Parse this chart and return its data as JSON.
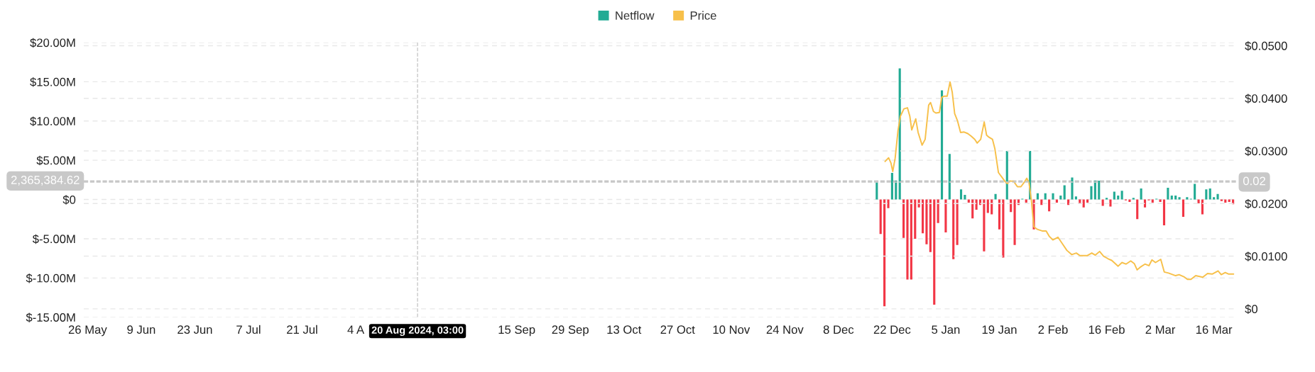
{
  "chart_data": {
    "type": "bar",
    "legend": "top",
    "grid": "y",
    "xlim": [
      "2024-05-25",
      "2025-03-22"
    ],
    "xticks": [
      {
        "value": "2024-05-26",
        "label": "26 May"
      },
      {
        "value": "2024-06-09",
        "label": "9 Jun"
      },
      {
        "value": "2024-06-23",
        "label": "23 Jun"
      },
      {
        "value": "2024-07-07",
        "label": "7 Jul"
      },
      {
        "value": "2024-07-21",
        "label": "21 Jul"
      },
      {
        "value": "2024-08-04",
        "label": "4 A"
      },
      {
        "value": "2024-09-15",
        "label": "15 Sep"
      },
      {
        "value": "2024-09-29",
        "label": "29 Sep"
      },
      {
        "value": "2024-10-13",
        "label": "13 Oct"
      },
      {
        "value": "2024-10-27",
        "label": "27 Oct"
      },
      {
        "value": "2024-11-10",
        "label": "10 Nov"
      },
      {
        "value": "2024-11-24",
        "label": "24 Nov"
      },
      {
        "value": "2024-12-08",
        "label": "8 Dec"
      },
      {
        "value": "2024-12-22",
        "label": "22 Dec"
      },
      {
        "value": "2025-01-05",
        "label": "5 Jan"
      },
      {
        "value": "2025-01-19",
        "label": "19 Jan"
      },
      {
        "value": "2025-02-02",
        "label": "2 Feb"
      },
      {
        "value": "2025-02-16",
        "label": "16 Feb"
      },
      {
        "value": "2025-03-02",
        "label": "2 Mar"
      },
      {
        "value": "2025-03-16",
        "label": "16 Mar"
      }
    ],
    "ylim": [
      -15000000,
      20000000
    ],
    "yticks": [
      {
        "value": -15000000,
        "label": "$-15.00M"
      },
      {
        "value": -10000000,
        "label": "$-10.00M"
      },
      {
        "value": -5000000,
        "label": "$-5.00M"
      },
      {
        "value": 0,
        "label": "$0"
      },
      {
        "value": 5000000,
        "label": "$5.00M"
      },
      {
        "value": 10000000,
        "label": "$10.00M"
      },
      {
        "value": 15000000,
        "label": "$15.00M"
      },
      {
        "value": 20000000,
        "label": "$20.00M"
      }
    ],
    "y2lim": [
      -0.0016,
      0.0506
    ],
    "y2ticks": [
      {
        "value": 0,
        "label": "$0"
      },
      {
        "value": 0.01,
        "label": "$0.0100"
      },
      {
        "value": 0.02,
        "label": "$0.0200"
      },
      {
        "value": 0.03,
        "label": "$0.0300"
      },
      {
        "value": 0.04,
        "label": "$0.0400"
      },
      {
        "value": 0.05,
        "label": "$0.0500"
      }
    ],
    "series": [
      {
        "name": "Netflow",
        "color": "#22ab94",
        "x": [
          "2024-12-18",
          "2024-12-19",
          "2024-12-20",
          "2024-12-21",
          "2024-12-22",
          "2024-12-23",
          "2024-12-24",
          "2024-12-25",
          "2024-12-26",
          "2024-12-27",
          "2024-12-28",
          "2024-12-29",
          "2024-12-30",
          "2024-12-31",
          "2025-01-01",
          "2025-01-02",
          "2025-01-03",
          "2025-01-04",
          "2025-01-05",
          "2025-01-06",
          "2025-01-07",
          "2025-01-08",
          "2025-01-09",
          "2025-01-10",
          "2025-01-11",
          "2025-01-12",
          "2025-01-13",
          "2025-01-14",
          "2025-01-15",
          "2025-01-16",
          "2025-01-17",
          "2025-01-18",
          "2025-01-19",
          "2025-01-20",
          "2025-01-21",
          "2025-01-22",
          "2025-01-23",
          "2025-01-24",
          "2025-01-25",
          "2025-01-26",
          "2025-01-27",
          "2025-01-28",
          "2025-01-29",
          "2025-01-30",
          "2025-01-31",
          "2025-02-01",
          "2025-02-02",
          "2025-02-03",
          "2025-02-04",
          "2025-02-05",
          "2025-02-06",
          "2025-02-07",
          "2025-02-08",
          "2025-02-09",
          "2025-02-10",
          "2025-02-11",
          "2025-02-12",
          "2025-02-13",
          "2025-02-14",
          "2025-02-15",
          "2025-02-16",
          "2025-02-17",
          "2025-02-18",
          "2025-02-19",
          "2025-02-20",
          "2025-02-21",
          "2025-02-22",
          "2025-02-23",
          "2025-02-24",
          "2025-02-25",
          "2025-02-26",
          "2025-02-27",
          "2025-02-28",
          "2025-03-01",
          "2025-03-02",
          "2025-03-03",
          "2025-03-04",
          "2025-03-05",
          "2025-03-06",
          "2025-03-07",
          "2025-03-08",
          "2025-03-09",
          "2025-03-10",
          "2025-03-11",
          "2025-03-12",
          "2025-03-13",
          "2025-03-14",
          "2025-03-15",
          "2025-03-16",
          "2025-03-17",
          "2025-03-18",
          "2025-03-19",
          "2025-03-20",
          "2025-03-21"
        ],
        "values": [
          2200000,
          -4400000,
          -13600000,
          -1100000,
          3400000,
          2400000,
          16700000,
          -4900000,
          -10200000,
          -10200000,
          -5000000,
          -1000000,
          -4300000,
          -5700000,
          -6700000,
          -13400000,
          -3000000,
          13900000,
          -4200000,
          5800000,
          -7600000,
          -5800000,
          1300000,
          600000,
          -400000,
          -2400000,
          -1300000,
          -700000,
          -6600000,
          -1700000,
          -1900000,
          700000,
          -3800000,
          -7400000,
          6200000,
          -1600000,
          -5800000,
          -700000,
          100000,
          -400000,
          6200000,
          -3800000,
          800000,
          -700000,
          800000,
          -1500000,
          800000,
          -400000,
          500000,
          1800000,
          -700000,
          2800000,
          400000,
          -500000,
          -1000000,
          -400000,
          1700000,
          2400000,
          2400000,
          -800000,
          200000,
          -900000,
          1000000,
          500000,
          1100000,
          -100000,
          -300000,
          200000,
          -2500000,
          1400000,
          -1000000,
          -100000,
          -400000,
          100000,
          -300000,
          -3300000,
          1500000,
          500000,
          500000,
          300000,
          -2200000,
          300000,
          100000,
          2000000,
          -500000,
          -1900000,
          1300000,
          1400000,
          300000,
          700000,
          -200000,
          -400000,
          -300000,
          -600000
        ],
        "colors": [
          "#22ab94",
          "#f23645",
          "#f23645",
          "#f23645",
          "#22ab94",
          "#22ab94",
          "#22ab94",
          "#f23645",
          "#f23645",
          "#f23645",
          "#f23645",
          "#f23645",
          "#f23645",
          "#f23645",
          "#f23645",
          "#f23645",
          "#f23645",
          "#22ab94",
          "#f23645",
          "#22ab94",
          "#f23645",
          "#f23645",
          "#22ab94",
          "#22ab94",
          "#f23645",
          "#f23645",
          "#f23645",
          "#f23645",
          "#f23645",
          "#f23645",
          "#f23645",
          "#22ab94",
          "#f23645",
          "#f23645",
          "#22ab94",
          "#f23645",
          "#f23645",
          "#f23645",
          "#22ab94",
          "#f23645",
          "#22ab94",
          "#f23645",
          "#22ab94",
          "#f23645",
          "#22ab94",
          "#f23645",
          "#22ab94",
          "#f23645",
          "#22ab94",
          "#22ab94",
          "#f23645",
          "#22ab94",
          "#22ab94",
          "#f23645",
          "#f23645",
          "#f23645",
          "#22ab94",
          "#22ab94",
          "#22ab94",
          "#f23645",
          "#22ab94",
          "#f23645",
          "#22ab94",
          "#22ab94",
          "#22ab94",
          "#f23645",
          "#f23645",
          "#22ab94",
          "#f23645",
          "#22ab94",
          "#f23645",
          "#f23645",
          "#f23645",
          "#22ab94",
          "#f23645",
          "#f23645",
          "#22ab94",
          "#22ab94",
          "#22ab94",
          "#22ab94",
          "#f23645",
          "#22ab94",
          "#22ab94",
          "#22ab94",
          "#f23645",
          "#f23645",
          "#22ab94",
          "#22ab94",
          "#22ab94",
          "#22ab94",
          "#f23645",
          "#f23645",
          "#f23645",
          "#f23645"
        ]
      },
      {
        "name": "Price",
        "type": "line",
        "axis": "y2",
        "color": "#f7c04a",
        "x": [
          "2024-12-20T04:00",
          "2024-12-21T02:00",
          "2024-12-21T17:00",
          "2024-12-22T04:00",
          "2024-12-22T19:00",
          "2024-12-23T13:00",
          "2024-12-24T04:00",
          "2024-12-25T02:00",
          "2024-12-26T00:00",
          "2024-12-26T15:00",
          "2024-12-27T03:00",
          "2024-12-28T04:00",
          "2024-12-28T19:00",
          "2024-12-29T20:00",
          "2024-12-30T15:00",
          "2024-12-31T13:00",
          "2025-01-01T01:00",
          "2025-01-01T19:00",
          "2025-01-02T10:00",
          "2025-01-03T08:00",
          "2025-01-03T23:00",
          "2025-01-04T14:00",
          "2025-01-05T09:00",
          "2025-01-06T03:00",
          "2025-01-06T17:00",
          "2025-01-07T08:00",
          "2025-01-08T02:00",
          "2025-01-08T21:00",
          "2025-01-09T19:00",
          "2025-01-10T18:00",
          "2025-01-11T16:00",
          "2025-01-12T14:00",
          "2025-01-13T05:00",
          "2025-01-14T03:00",
          "2025-01-15T01:00",
          "2025-01-15T16:00",
          "2025-01-16T07:00",
          "2025-01-17T05:00",
          "2025-01-17T20:00",
          "2025-01-18T18:00",
          "2025-01-19T16:00",
          "2025-01-20T14:00",
          "2025-01-21T02:00",
          "2025-01-21T20:00",
          "2025-01-22T18:00",
          "2025-01-23T17:00",
          "2025-01-24T15:00",
          "2025-01-25T13:00",
          "2025-01-26T04:00",
          "2025-01-26T18:00",
          "2025-01-27T09:00",
          "2025-01-28T00:00",
          "2025-01-28T22:00",
          "2025-01-30T04:00",
          "2025-01-31T05:00",
          "2025-02-01T00:00",
          "2025-02-01T23:00",
          "2025-02-03T07:00",
          "2025-02-04T10:00",
          "2025-02-05T15:00",
          "2025-02-06T21:00",
          "2025-02-08T02:00",
          "2025-02-09T01:00",
          "2025-02-10T21:00",
          "2025-02-12T03:00",
          "2025-02-13T01:00",
          "2025-02-14T04:00",
          "2025-02-15T05:00",
          "2025-02-16T10:00",
          "2025-02-17T08:00",
          "2025-02-19T00:00",
          "2025-02-20T00:00",
          "2025-02-21T01:00",
          "2025-02-22T07:00",
          "2025-02-23T05:00",
          "2025-02-23T23:00",
          "2025-02-24T18:00",
          "2025-02-26T00:00",
          "2025-02-27T01:00",
          "2025-02-27T20:00",
          "2025-02-28T18:00",
          "2025-03-02T03:00",
          "2025-03-03T01:00",
          "2025-03-04T04:00",
          "2025-03-06T00:00",
          "2025-03-06T22:00",
          "2025-03-08T04:00",
          "2025-03-09T02:00",
          "2025-03-10T00:00",
          "2025-03-11T06:00",
          "2025-03-13T02:00",
          "2025-03-14T08:00",
          "2025-03-15T13:00",
          "2025-03-17T02:00",
          "2025-03-17T22:00",
          "2025-03-18T23:00",
          "2025-03-19T21:00",
          "2025-03-21T03:00"
        ],
        "values": [
          0.028,
          0.0287,
          0.0277,
          0.0261,
          0.0286,
          0.0339,
          0.0366,
          0.038,
          0.0382,
          0.0366,
          0.034,
          0.0361,
          0.0335,
          0.0311,
          0.0322,
          0.0387,
          0.0392,
          0.0375,
          0.0372,
          0.0373,
          0.0402,
          0.0404,
          0.0404,
          0.0431,
          0.0411,
          0.0371,
          0.0357,
          0.0335,
          0.0336,
          0.0333,
          0.0328,
          0.0322,
          0.0315,
          0.0322,
          0.0355,
          0.033,
          0.0326,
          0.0322,
          0.0304,
          0.0259,
          0.025,
          0.0241,
          0.0238,
          0.0243,
          0.0242,
          0.0232,
          0.0232,
          0.0241,
          0.0248,
          0.0239,
          0.0205,
          0.0156,
          0.0151,
          0.0148,
          0.0148,
          0.0138,
          0.0131,
          0.0136,
          0.0124,
          0.0111,
          0.0103,
          0.0106,
          0.0101,
          0.0101,
          0.0106,
          0.0102,
          0.0109,
          0.01,
          0.0095,
          0.0092,
          0.0081,
          0.0088,
          0.0085,
          0.0091,
          0.0086,
          0.0074,
          0.0079,
          0.0085,
          0.0082,
          0.0093,
          0.0088,
          0.0094,
          0.007,
          0.0068,
          0.0063,
          0.0065,
          0.0061,
          0.0056,
          0.0056,
          0.0063,
          0.006,
          0.0067,
          0.0066,
          0.0072,
          0.0065,
          0.0069,
          0.0066,
          0.0066
        ]
      }
    ],
    "ref_lines": [
      {
        "axis": "x",
        "value": "2024-08-20T03:00",
        "label": "20 Aug 2024, 03:00",
        "color": "#c8c8c8",
        "line_style": "dashed"
      },
      {
        "axis": "y",
        "value": 2365384.62,
        "label": "2,365,384.62",
        "color": "#c8c8c8",
        "line_style": "dashed"
      },
      {
        "axis": "y2",
        "value": 0.0241,
        "label": "0.02",
        "color": "#c8c8c8",
        "line_style": "dashed"
      }
    ]
  }
}
